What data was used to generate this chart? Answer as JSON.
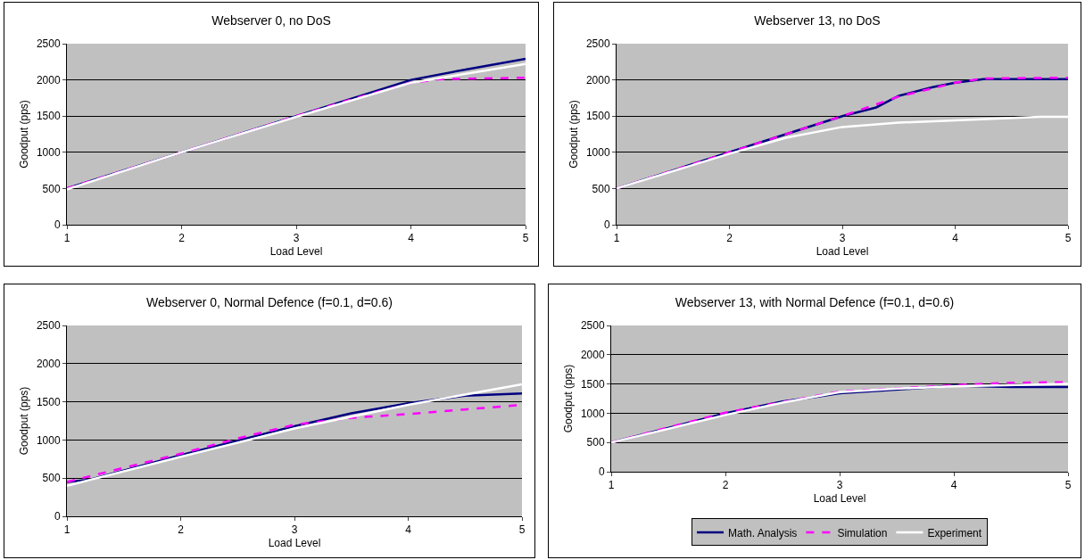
{
  "chart_data": [
    {
      "type": "line",
      "title": "Webserver 0, no DoS",
      "xlabel": "Load Level",
      "ylabel": "Goodput (pps)",
      "xlim": [
        1,
        5
      ],
      "xticks": [
        1,
        2,
        3,
        4,
        5
      ],
      "ylim": [
        0,
        2500
      ],
      "yticks": [
        0,
        500,
        1000,
        1500,
        2000,
        2500
      ],
      "grid": "y",
      "legend": false,
      "series": [
        {
          "color": "#000080",
          "line_style": "solid",
          "x": [
            1,
            2,
            3,
            3.5,
            4,
            4.5,
            5
          ],
          "values": [
            500,
            1000,
            1500,
            1750,
            2000,
            2150,
            2290
          ]
        },
        {
          "color": "#ff00ff",
          "line_style": "dashed",
          "x": [
            1,
            2,
            3,
            3.5,
            4,
            4.25,
            5
          ],
          "values": [
            500,
            1000,
            1500,
            1740,
            1960,
            2010,
            2030
          ]
        },
        {
          "color": "#ffffff",
          "line_style": "solid",
          "x": [
            1,
            2,
            3,
            4,
            5
          ],
          "values": [
            490,
            1000,
            1490,
            1960,
            2220
          ]
        }
      ]
    },
    {
      "type": "line",
      "title": "Webserver 13, no DoS",
      "xlabel": "Load Level",
      "ylabel": "Goodput (pps)",
      "xlim": [
        1,
        5
      ],
      "xticks": [
        1,
        2,
        3,
        4,
        5
      ],
      "ylim": [
        0,
        2500
      ],
      "yticks": [
        0,
        500,
        1000,
        1500,
        2000,
        2500
      ],
      "grid": "y",
      "legend": false,
      "series": [
        {
          "color": "#000080",
          "line_style": "solid",
          "x": [
            1,
            2,
            2.5,
            3,
            3.3,
            3.5,
            3.8,
            4,
            4.25,
            5
          ],
          "values": [
            500,
            1000,
            1250,
            1500,
            1620,
            1780,
            1900,
            1960,
            2010,
            2010
          ]
        },
        {
          "color": "#ff00ff",
          "line_style": "dashed",
          "x": [
            1,
            2,
            3,
            3.5,
            4,
            4.25,
            5
          ],
          "values": [
            500,
            1000,
            1500,
            1770,
            1960,
            2020,
            2030
          ]
        },
        {
          "color": "#ffffff",
          "line_style": "solid",
          "x": [
            1,
            2,
            2.5,
            3,
            3.5,
            4,
            4.75,
            5
          ],
          "values": [
            500,
            980,
            1200,
            1350,
            1410,
            1440,
            1490,
            1490
          ]
        }
      ]
    },
    {
      "type": "line",
      "title": "Webserver 0, Normal Defence (f=0.1, d=0.6)",
      "xlabel": "Load Level",
      "ylabel": "Goodput (pps)",
      "xlim": [
        1,
        5
      ],
      "xticks": [
        1,
        2,
        3,
        4,
        5
      ],
      "ylim": [
        0,
        2500
      ],
      "yticks": [
        0,
        500,
        1000,
        1500,
        2000,
        2500
      ],
      "grid": "y",
      "legend": false,
      "series": [
        {
          "color": "#000080",
          "line_style": "solid",
          "x": [
            1,
            1.2,
            2,
            3,
            3.5,
            4,
            4.5,
            5
          ],
          "values": [
            450,
            480,
            800,
            1180,
            1350,
            1480,
            1580,
            1610
          ]
        },
        {
          "color": "#ff00ff",
          "line_style": "dashed",
          "x": [
            1,
            2,
            2.5,
            3,
            3.5,
            4,
            4.5,
            5
          ],
          "values": [
            450,
            820,
            1020,
            1200,
            1290,
            1340,
            1400,
            1460
          ]
        },
        {
          "color": "#ffffff",
          "line_style": "solid",
          "x": [
            1,
            2,
            3,
            4,
            5
          ],
          "values": [
            400,
            780,
            1150,
            1460,
            1730
          ]
        }
      ]
    },
    {
      "type": "line",
      "title": "Webserver 13, with Normal Defence (f=0.1, d=0.6)",
      "xlabel": "Load Level",
      "ylabel": "Goodput (pps)",
      "xlim": [
        1,
        5
      ],
      "xticks": [
        1,
        2,
        3,
        4,
        5
      ],
      "ylim": [
        0,
        2500
      ],
      "yticks": [
        0,
        500,
        1000,
        1500,
        2000,
        2500
      ],
      "grid": "y",
      "legend": "bottom",
      "series": [
        {
          "name": "Math. Analysis",
          "color": "#000080",
          "line_style": "solid",
          "x": [
            1,
            2,
            2.5,
            2.8,
            3,
            3.4,
            4,
            4.5,
            5
          ],
          "values": [
            500,
            1000,
            1200,
            1280,
            1340,
            1390,
            1470,
            1450,
            1450
          ]
        },
        {
          "name": "Simulation",
          "color": "#ff00ff",
          "line_style": "dashed",
          "x": [
            1,
            2,
            3,
            4,
            4.5,
            5
          ],
          "values": [
            500,
            1010,
            1370,
            1480,
            1520,
            1530
          ]
        },
        {
          "name": "Experiment",
          "color": "#ffffff",
          "line_style": "solid",
          "x": [
            1,
            2,
            2.5,
            3,
            3.5,
            4,
            5
          ],
          "values": [
            500,
            970,
            1180,
            1360,
            1420,
            1460,
            1500
          ]
        }
      ]
    }
  ]
}
